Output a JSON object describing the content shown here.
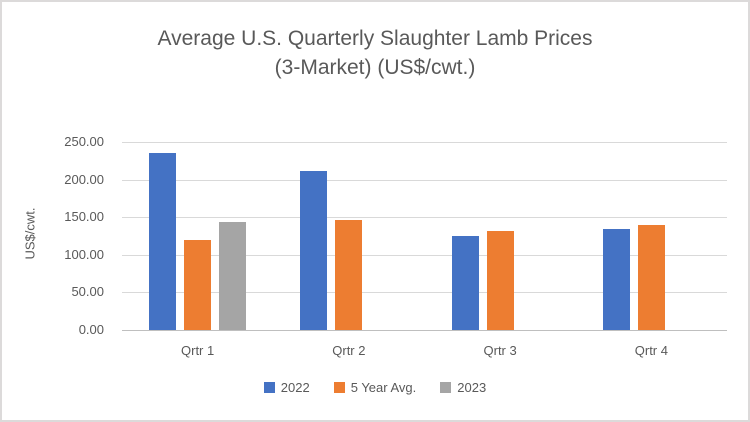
{
  "title": {
    "line1": "Average U.S. Quarterly Slaughter Lamb Prices",
    "line2": "(3-Market)  (US$/cwt.)"
  },
  "chart_data": {
    "type": "bar",
    "title": "Average U.S. Quarterly Slaughter Lamb Prices (3-Market) (US$/cwt.)",
    "categories": [
      "Qrtr 1",
      "Qrtr 2",
      "Qrtr 3",
      "Qrtr 4"
    ],
    "series": [
      {
        "name": "2022",
        "color": "#4472C4",
        "values": [
          235,
          211,
          125,
          134
        ]
      },
      {
        "name": "5 Year Avg.",
        "color": "#ED7D31",
        "values": [
          120,
          146,
          132,
          139
        ]
      },
      {
        "name": "2023",
        "color": "#A5A5A5",
        "values": [
          143,
          null,
          null,
          null
        ]
      }
    ],
    "xlabel": "",
    "ylabel": "US$/cwt.",
    "ylim": [
      0,
      250
    ],
    "ytick_step": 50,
    "ytick_labels": [
      "0.00",
      "50.00",
      "100.00",
      "150.00",
      "200.00",
      "250.00"
    ],
    "grid": true,
    "legend_position": "bottom"
  },
  "colors": {
    "text": "#595959",
    "gridline": "#D9D9D9",
    "axis_line": "#BFBFBF",
    "frame_border": "#DCDADA",
    "series_2022": "#4472C4",
    "series_5yr": "#ED7D31",
    "series_2023": "#A5A5A5"
  }
}
